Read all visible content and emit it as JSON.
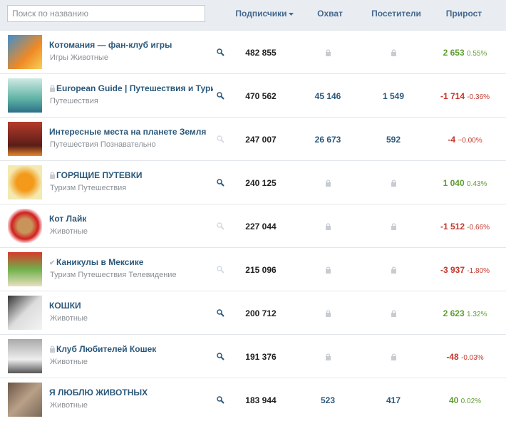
{
  "search": {
    "placeholder": "Поиск по названию"
  },
  "columns": {
    "subscribers": "Подписчики",
    "reach": "Охват",
    "visitors": "Посетители",
    "growth": "Прирост"
  },
  "rows": [
    {
      "name": "Котомания — фан-клуб игры",
      "tags": "Игры Животные",
      "search_active": true,
      "subscribers": "482 855",
      "reach": null,
      "visitors": null,
      "growth": "2 653",
      "growth_pct": "0.55%"
    },
    {
      "name": "European Guide | Путешествия и Туризм",
      "badge": "lock",
      "tags": "Путешествия",
      "search_active": true,
      "subscribers": "470 562",
      "reach": "45 146",
      "visitors": "1 549",
      "growth": "-1 714",
      "growth_pct": "-0.36%"
    },
    {
      "name": "Интересные места на планете Земля",
      "tags": "Путешествия Познавательно",
      "search_active": false,
      "subscribers": "247 007",
      "reach": "26 673",
      "visitors": "592",
      "growth": "-4",
      "growth_pct": "~0.00%"
    },
    {
      "name": "ГОРЯЩИЕ ПУТЕВКИ",
      "badge": "lock",
      "tags": "Туризм Путешествия",
      "search_active": true,
      "subscribers": "240 125",
      "reach": null,
      "visitors": null,
      "growth": "1 040",
      "growth_pct": "0.43%"
    },
    {
      "name": "Кот Лайк",
      "tags": "Животные",
      "search_active": false,
      "subscribers": "227 044",
      "reach": null,
      "visitors": null,
      "growth": "-1 512",
      "growth_pct": "-0.66%"
    },
    {
      "name": "Каникулы в Мексике",
      "badge": "check",
      "tags": "Туризм Путешествия Телевидение",
      "search_active": false,
      "subscribers": "215 096",
      "reach": null,
      "visitors": null,
      "growth": "-3 937",
      "growth_pct": "-1.80%"
    },
    {
      "name": "КОШКИ",
      "tags": "Животные",
      "search_active": true,
      "subscribers": "200 712",
      "reach": null,
      "visitors": null,
      "growth": "2 623",
      "growth_pct": "1.32%"
    },
    {
      "name": "Клуб Любителей Кошек",
      "badge": "lock",
      "tags": "Животные",
      "search_active": true,
      "subscribers": "191 376",
      "reach": null,
      "visitors": null,
      "growth": "-48",
      "growth_pct": "-0.03%"
    },
    {
      "name": "Я ЛЮБЛЮ ЖИВОТНЫХ",
      "tags": "Животные",
      "search_active": true,
      "subscribers": "183 944",
      "reach": "523",
      "visitors": "417",
      "growth": "40",
      "growth_pct": "0.02%"
    }
  ]
}
